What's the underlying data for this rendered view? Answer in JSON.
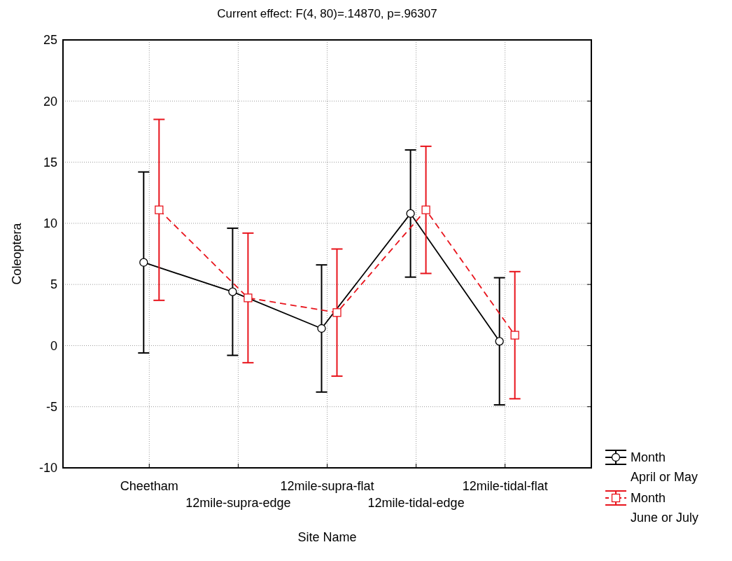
{
  "chart_data": {
    "type": "line",
    "title": "Current effect: F(4, 80)=.14870, p=.96307",
    "xlabel": "Site Name",
    "ylabel": "Coleoptera",
    "categories": [
      "Cheetham",
      "12mile-supra-edge",
      "12mile-supra-flat",
      "12mile-tidal-edge",
      "12mile-tidal-flat"
    ],
    "series": [
      {
        "name": "Month\nApril or May",
        "color": "#000000",
        "marker": "circle",
        "line_style": "solid",
        "values": [
          6.8,
          4.4,
          1.4,
          10.8,
          0.35
        ],
        "errors": [
          7.4,
          5.2,
          5.2,
          5.2,
          5.2
        ]
      },
      {
        "name": "Month\nJune or July",
        "color": "#e8141c",
        "marker": "square",
        "line_style": "dashed",
        "values": [
          11.1,
          3.9,
          2.7,
          11.1,
          0.85
        ],
        "errors": [
          7.4,
          5.3,
          5.2,
          5.2,
          5.2
        ]
      }
    ],
    "ylim": [
      -10,
      25
    ],
    "yticks": [
      -10,
      -5,
      0,
      5,
      10,
      15,
      20,
      25
    ],
    "grid": true,
    "legend": "bottom right"
  }
}
